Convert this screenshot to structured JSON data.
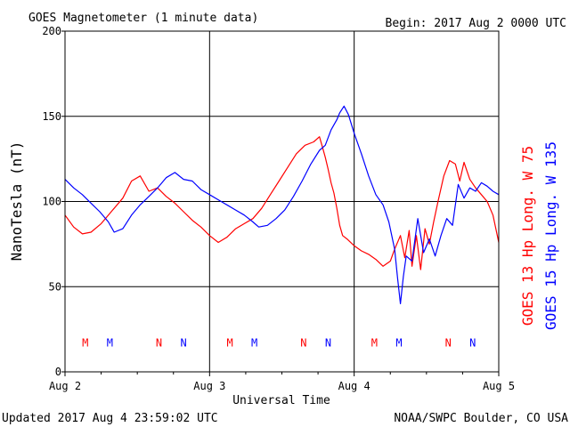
{
  "title": "GOES Magnetometer (1 minute data)",
  "begin": "Begin:  2017 Aug 2 0000 UTC",
  "updated": "Updated 2017 Aug  4 23:59:02 UTC",
  "credit": "NOAA/SWPC Boulder, CO USA",
  "colors": {
    "g13": "#ff0000",
    "g15": "#0000ff",
    "axis": "#000000"
  },
  "chart_data": {
    "type": "line",
    "ylabel": "NanoTesla (nT)",
    "xlabel": "Universal Time",
    "ylim": [
      0,
      200
    ],
    "yticks": [
      "0",
      "50",
      "100",
      "150",
      "200"
    ],
    "xlim": [
      0,
      3
    ],
    "xtick_labels": [
      "Aug 2",
      "Aug 3",
      "Aug 4",
      "Aug 5"
    ],
    "grid": true,
    "series": [
      {
        "name": "GOES 13 Hp  Long. W 75",
        "color": "#ff0000",
        "x": [
          0,
          0.06,
          0.12,
          0.18,
          0.25,
          0.32,
          0.4,
          0.46,
          0.52,
          0.58,
          0.64,
          0.7,
          0.76,
          0.82,
          0.88,
          0.94,
          1.0,
          1.06,
          1.12,
          1.18,
          1.24,
          1.3,
          1.36,
          1.42,
          1.48,
          1.54,
          1.6,
          1.66,
          1.72,
          1.76,
          1.78,
          1.8,
          1.82,
          1.84,
          1.86,
          1.88,
          1.9,
          1.92,
          1.95,
          2.0,
          2.05,
          2.1,
          2.15,
          2.2,
          2.25,
          2.28,
          2.32,
          2.35,
          2.38,
          2.4,
          2.43,
          2.46,
          2.49,
          2.52,
          2.55,
          2.58,
          2.62,
          2.66,
          2.7,
          2.73,
          2.76,
          2.8,
          2.84,
          2.88,
          2.92,
          2.96,
          3.0
        ],
        "values": [
          92,
          85,
          81,
          82,
          87,
          94,
          102,
          112,
          115,
          106,
          108,
          103,
          99,
          94,
          89,
          85,
          80,
          76,
          79,
          84,
          87,
          90,
          96,
          104,
          112,
          120,
          128,
          133,
          135,
          138,
          132,
          126,
          119,
          111,
          105,
          96,
          86,
          80,
          78,
          74,
          71,
          69,
          66,
          62,
          65,
          72,
          80,
          67,
          83,
          62,
          80,
          60,
          84,
          75,
          88,
          100,
          115,
          124,
          122,
          112,
          123,
          113,
          108,
          104,
          100,
          92,
          76
        ]
      },
      {
        "name": "GOES 15 Hp  Long. W 135",
        "color": "#0000ff",
        "x": [
          0,
          0.06,
          0.12,
          0.18,
          0.24,
          0.3,
          0.34,
          0.4,
          0.46,
          0.52,
          0.58,
          0.64,
          0.7,
          0.76,
          0.82,
          0.88,
          0.94,
          1.0,
          1.06,
          1.12,
          1.18,
          1.24,
          1.3,
          1.34,
          1.4,
          1.46,
          1.52,
          1.58,
          1.64,
          1.7,
          1.76,
          1.8,
          1.84,
          1.88,
          1.9,
          1.93,
          1.96,
          2.0,
          2.05,
          2.1,
          2.15,
          2.2,
          2.24,
          2.28,
          2.3,
          2.32,
          2.34,
          2.36,
          2.4,
          2.44,
          2.48,
          2.52,
          2.56,
          2.6,
          2.64,
          2.68,
          2.72,
          2.76,
          2.8,
          2.84,
          2.88,
          2.92,
          2.96,
          3.0
        ],
        "values": [
          113,
          108,
          104,
          99,
          94,
          88,
          82,
          84,
          92,
          98,
          103,
          108,
          114,
          117,
          113,
          112,
          107,
          104,
          101,
          98,
          95,
          92,
          88,
          85,
          86,
          90,
          95,
          103,
          112,
          122,
          130,
          133,
          142,
          148,
          152,
          156,
          151,
          140,
          128,
          115,
          104,
          98,
          88,
          72,
          55,
          40,
          56,
          68,
          65,
          90,
          70,
          78,
          68,
          80,
          90,
          86,
          110,
          102,
          108,
          106,
          111,
          109,
          106,
          104
        ]
      }
    ],
    "markers": [
      {
        "letter": "M",
        "x": 0.14,
        "color": "#ff0000"
      },
      {
        "letter": "M",
        "x": 0.31,
        "color": "#0000ff"
      },
      {
        "letter": "N",
        "x": 0.65,
        "color": "#ff0000"
      },
      {
        "letter": "N",
        "x": 0.82,
        "color": "#0000ff"
      },
      {
        "letter": "M",
        "x": 1.14,
        "color": "#ff0000"
      },
      {
        "letter": "M",
        "x": 1.31,
        "color": "#0000ff"
      },
      {
        "letter": "N",
        "x": 1.65,
        "color": "#ff0000"
      },
      {
        "letter": "N",
        "x": 1.82,
        "color": "#0000ff"
      },
      {
        "letter": "M",
        "x": 2.14,
        "color": "#ff0000"
      },
      {
        "letter": "M",
        "x": 2.31,
        "color": "#0000ff"
      },
      {
        "letter": "N",
        "x": 2.65,
        "color": "#ff0000"
      },
      {
        "letter": "N",
        "x": 2.82,
        "color": "#0000ff"
      }
    ],
    "marker_level": 17
  }
}
